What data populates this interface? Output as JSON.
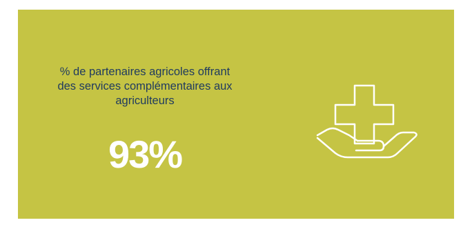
{
  "stat": {
    "label_lines": [
      "% de partenaires agricoles offrant",
      "des services complémentaires aux",
      "agriculteurs"
    ],
    "value": "93%"
  },
  "icon": {
    "name": "hand-holding-medical-cross-icon"
  },
  "colors": {
    "background": "#c5c444",
    "label_text": "#1f3a5f",
    "value_text": "#ffffff",
    "icon_stroke": "#ffffff"
  }
}
